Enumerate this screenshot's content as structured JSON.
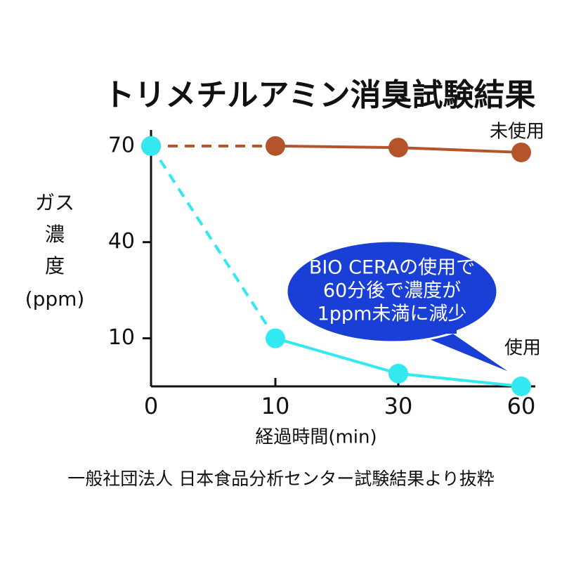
{
  "chart_data": {
    "type": "line",
    "title": "トリメチルアミン消臭試験結果",
    "ylabel": [
      "ガス",
      "濃",
      "度",
      "(ppm)"
    ],
    "xlabel": "経過時間(min)",
    "categories": [
      "0",
      "10",
      "30",
      "60"
    ],
    "series": [
      {
        "name": "未使用",
        "color": "#b5532a",
        "values": [
          70,
          70,
          69.5,
          68
        ]
      },
      {
        "name": "使用",
        "color": "#33e8f0",
        "values": [
          70,
          10,
          -1,
          -5
        ]
      }
    ],
    "ylim": [
      -5,
      75
    ],
    "yticks": [
      10,
      40,
      70
    ],
    "annotation": [
      "BIO CERAの使用で",
      "60分後で濃度が",
      "1ppm未満に減少"
    ],
    "footnote": "一般社団法人 日本食品分析センター試験結果より抜粋"
  }
}
